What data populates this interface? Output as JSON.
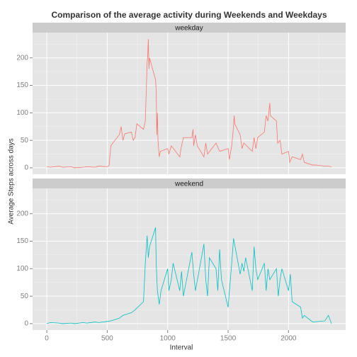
{
  "chart_data": {
    "type": "line",
    "title": "Comparison of the average activity during Weekends and Weekdays",
    "xlabel": "Interval",
    "ylabel": "Average Steps across days",
    "facet": true,
    "xlim": [
      -117.75,
      2472.75
    ],
    "ylim": [
      -11.7,
      246
    ],
    "xticks": [
      0,
      500,
      1000,
      1500,
      2000
    ],
    "yticks": [
      0,
      50,
      100,
      150,
      200
    ],
    "xminor": [
      250,
      750,
      1250,
      1750,
      2250
    ],
    "yminor": [
      25,
      75,
      125,
      175,
      225
    ],
    "grid": true,
    "series": [
      {
        "name": "weekday",
        "color": "#F8766D",
        "x": [
          0,
          30,
          100,
          130,
          200,
          230,
          300,
          330,
          400,
          430,
          500,
          515,
          530,
          545,
          600,
          615,
          630,
          645,
          700,
          715,
          730,
          745,
          800,
          815,
          830,
          835,
          840,
          845,
          850,
          900,
          905,
          910,
          915,
          920,
          930,
          940,
          1000,
          1010,
          1030,
          1100,
          1110,
          1130,
          1200,
          1210,
          1215,
          1230,
          1245,
          1300,
          1315,
          1330,
          1400,
          1430,
          1500,
          1510,
          1530,
          1545,
          1550,
          1555,
          1600,
          1615,
          1630,
          1700,
          1715,
          1730,
          1745,
          1800,
          1815,
          1830,
          1845,
          1850,
          1900,
          1910,
          1930,
          1945,
          2000,
          2010,
          2030,
          2100,
          2115,
          2130,
          2200,
          2230,
          2300,
          2330,
          2355
        ],
        "values": [
          2,
          1,
          3,
          1,
          2,
          0,
          1,
          2,
          1,
          3,
          2,
          4,
          40,
          45,
          60,
          75,
          50,
          62,
          65,
          50,
          55,
          80,
          70,
          85,
          190,
          205,
          234,
          180,
          200,
          160,
          140,
          60,
          100,
          50,
          20,
          30,
          35,
          25,
          40,
          20,
          35,
          55,
          55,
          70,
          40,
          60,
          40,
          20,
          45,
          25,
          45,
          30,
          35,
          15,
          40,
          75,
          95,
          80,
          60,
          35,
          45,
          30,
          55,
          35,
          55,
          65,
          95,
          85,
          118,
          95,
          85,
          45,
          50,
          25,
          30,
          10,
          20,
          15,
          25,
          10,
          5,
          5,
          3,
          3,
          2
        ]
      },
      {
        "name": "weekend",
        "color": "#00BFC4",
        "x": [
          0,
          30,
          100,
          130,
          200,
          230,
          300,
          330,
          400,
          430,
          500,
          530,
          600,
          630,
          700,
          730,
          800,
          815,
          830,
          840,
          850,
          900,
          905,
          915,
          930,
          945,
          1000,
          1010,
          1030,
          1045,
          1100,
          1115,
          1130,
          1200,
          1215,
          1230,
          1300,
          1315,
          1330,
          1345,
          1400,
          1415,
          1430,
          1445,
          1500,
          1515,
          1530,
          1545,
          1600,
          1615,
          1630,
          1645,
          1700,
          1715,
          1730,
          1745,
          1800,
          1815,
          1830,
          1845,
          1900,
          1915,
          1930,
          1945,
          2000,
          2015,
          2030,
          2100,
          2115,
          2130,
          2200,
          2300,
          2330,
          2355
        ],
        "values": [
          0,
          2,
          1,
          0,
          1,
          0,
          2,
          1,
          3,
          2,
          4,
          5,
          10,
          15,
          20,
          25,
          40,
          110,
          160,
          120,
          140,
          175,
          110,
          60,
          35,
          60,
          100,
          60,
          80,
          110,
          60,
          95,
          50,
          130,
          90,
          60,
          145,
          80,
          50,
          120,
          100,
          60,
          135,
          80,
          30,
          70,
          110,
          155,
          90,
          110,
          95,
          120,
          60,
          140,
          100,
          80,
          110,
          60,
          100,
          80,
          100,
          50,
          80,
          100,
          60,
          90,
          40,
          30,
          10,
          15,
          3,
          5,
          15,
          0
        ]
      }
    ]
  }
}
